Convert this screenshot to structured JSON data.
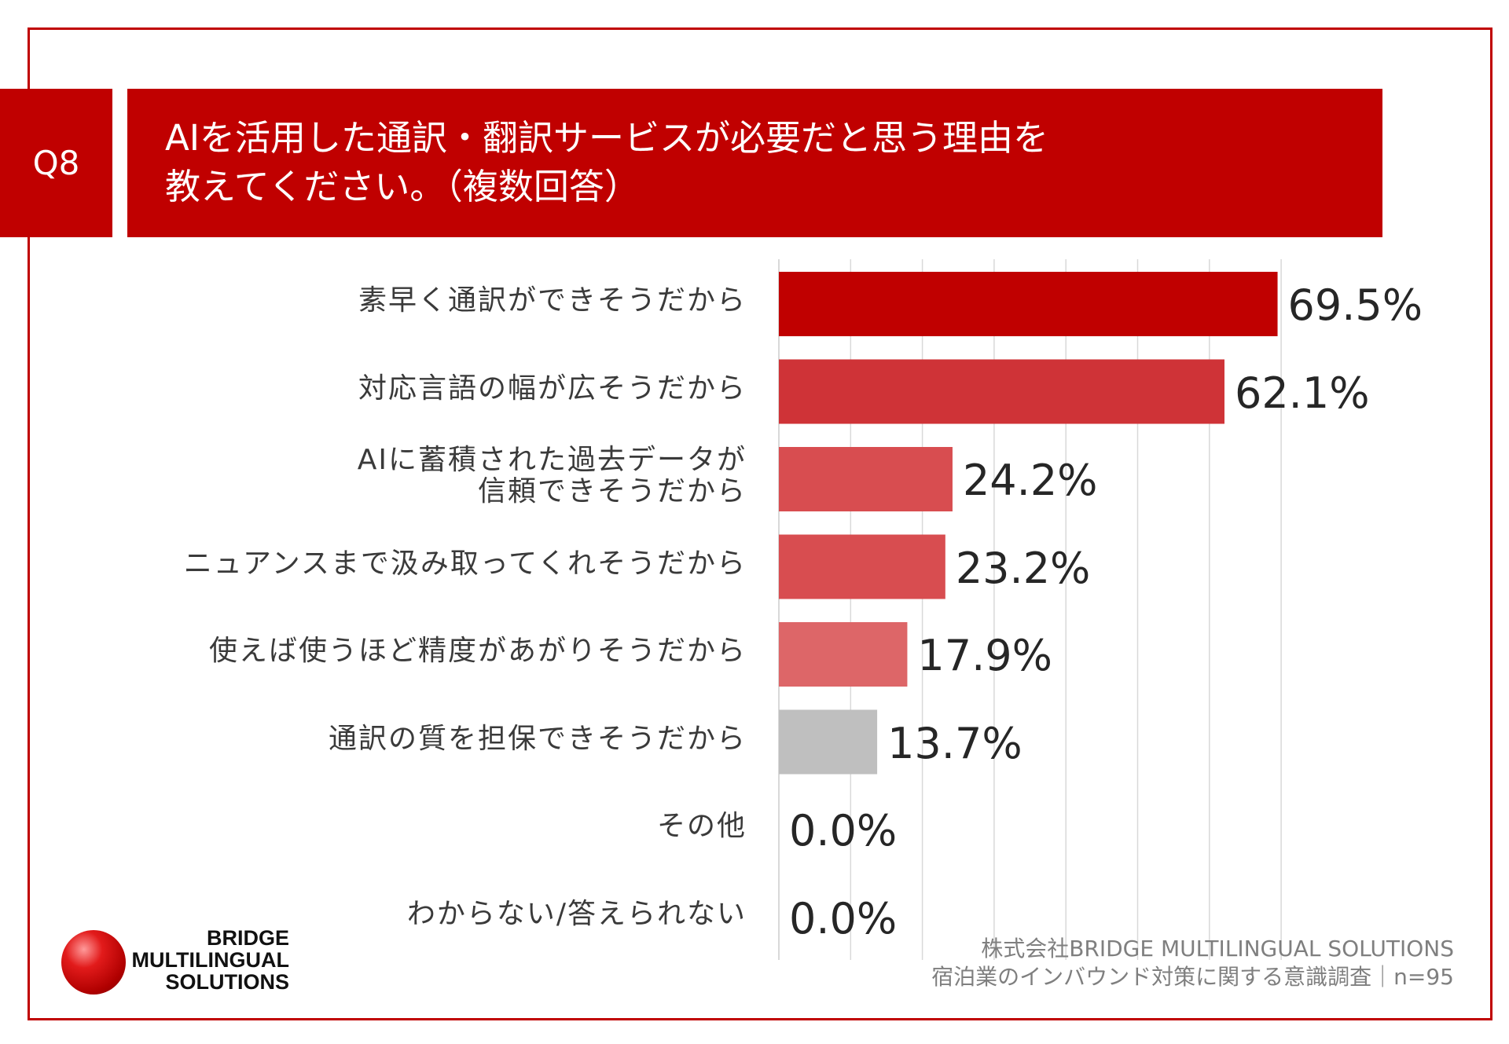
{
  "question": {
    "number": "Q8",
    "title_lines": [
      "AIを活用した通訳・翻訳サービスが必要だと思う理由を",
      "教えてください。（複数回答）"
    ]
  },
  "chart_data": {
    "type": "bar",
    "orientation": "horizontal",
    "title": "AIを活用した通訳・翻訳サービスが必要だと思う理由を教えてください。（複数回答）",
    "categories": [
      "素早く通訳ができそうだから",
      "対応言語の幅が広そうだから",
      "AIに蓄積された過去データが\n信頼できそうだから",
      "ニュアンスまで汲み取ってくれそうだから",
      "使えば使うほど精度があがりそうだから",
      "通訳の質を担保できそうだから",
      "その他",
      "わからない/答えられない"
    ],
    "values": [
      69.5,
      62.1,
      24.2,
      23.2,
      17.9,
      13.7,
      0.0,
      0.0
    ],
    "value_labels": [
      "69.5%",
      "62.1%",
      "24.2%",
      "23.2%",
      "17.9%",
      "13.7%",
      "0.0%",
      "0.0%"
    ],
    "bar_colors": [
      "#c00000",
      "#cf3337",
      "#d84d50",
      "#d84d50",
      "#dd6668",
      "#bfbfbf",
      "#bfbfbf",
      "#bfbfbf"
    ],
    "grid_color": "#d9d9d9",
    "xlim": [
      0,
      70
    ],
    "grid_step": 10,
    "unit": "%"
  },
  "footer": {
    "line1": "株式会社BRIDGE MULTILINGUAL SOLUTIONS",
    "line2": "宿泊業のインバウンド対策に関する意識調査｜n=95"
  },
  "logo": {
    "lines": [
      "BRIDGE",
      "MULTILINGUAL",
      "SOLUTIONS"
    ]
  },
  "colors": {
    "brand_red": "#c00000"
  }
}
